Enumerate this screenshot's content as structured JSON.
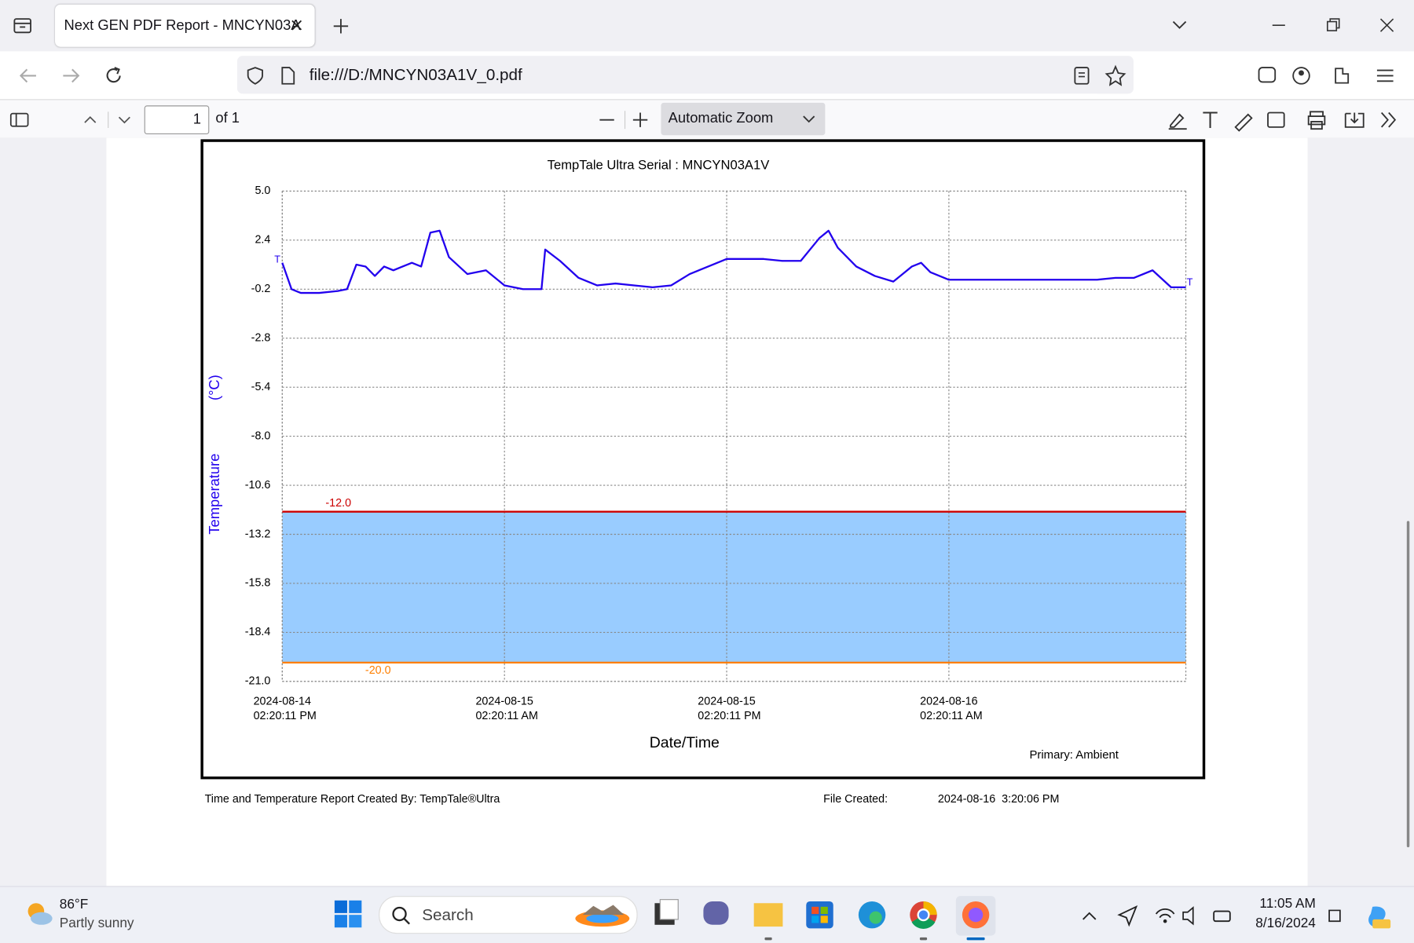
{
  "browser": {
    "tab_title": "Next GEN PDF Report - MNCYN03A",
    "url": "file:///D:/MNCYN03A1V_0.pdf",
    "page_number": "1",
    "page_count": "of 1",
    "zoom": "Automatic Zoom"
  },
  "chart_data": {
    "type": "line",
    "title": "TempTale Ultra  Serial : MNCYN03A1V",
    "ylabel": "Temperature",
    "yunit": "(°C)",
    "xlabel": "Date/Time",
    "legend": "Primary: Ambient",
    "marker_label": "T",
    "color": "#2200ee",
    "grid": true,
    "ylim": [
      -21,
      5
    ],
    "yticks": [
      {
        "value": 5,
        "label": "5.0"
      },
      2.4,
      -0.2,
      -2.8,
      -5.4,
      {
        "value": -8,
        "label": "-8.0"
      },
      -10.6,
      -13.2,
      -15.8,
      -18.4,
      {
        "value": -21,
        "label": "-21.0"
      }
    ],
    "xlim": [
      "2024-08-14T14:20:11",
      "2024-08-16T15:08:00"
    ],
    "xticks": [
      {
        "value": "2024-08-14T14:20:11",
        "label": "2024-08-14\n02:20:11 PM"
      },
      {
        "value": "2024-08-15T02:20:11",
        "label": "2024-08-15\n02:20:11 AM"
      },
      {
        "value": "2024-08-15T14:20:11",
        "label": "2024-08-15\n02:20:11 PM"
      },
      {
        "value": "2024-08-16T02:20:11",
        "label": "2024-08-16\n02:20:11 AM"
      }
    ],
    "thresholds": [
      {
        "value": -12,
        "label": "-12.0",
        "color": "#cc0000"
      },
      {
        "value": -20,
        "label": "-20.0",
        "color": "#ff7f00"
      }
    ],
    "band_color": "#99ccff",
    "x": [
      "2024-08-14T14:20:11",
      "2024-08-14T14:50:11",
      "2024-08-14T15:20:11",
      "2024-08-14T16:20:11",
      "2024-08-14T17:20:11",
      "2024-08-14T17:50:11",
      "2024-08-14T18:20:11",
      "2024-08-14T18:50:11",
      "2024-08-14T19:20:11",
      "2024-08-14T19:50:11",
      "2024-08-14T20:20:11",
      "2024-08-14T21:20:11",
      "2024-08-14T21:50:11",
      "2024-08-14T22:20:11",
      "2024-08-14T22:50:11",
      "2024-08-14T23:20:11",
      "2024-08-15T00:20:11",
      "2024-08-15T01:20:11",
      "2024-08-15T02:20:11",
      "2024-08-15T03:20:11",
      "2024-08-15T04:20:11",
      "2024-08-15T04:32:11",
      "2024-08-15T05:20:11",
      "2024-08-15T06:20:11",
      "2024-08-15T07:20:11",
      "2024-08-15T08:20:11",
      "2024-08-15T09:20:11",
      "2024-08-15T10:20:11",
      "2024-08-15T11:20:11",
      "2024-08-15T12:20:11",
      "2024-08-15T13:20:11",
      "2024-08-15T14:20:11",
      "2024-08-15T15:20:11",
      "2024-08-15T16:20:11",
      "2024-08-15T17:20:11",
      "2024-08-15T18:20:11",
      "2024-08-15T19:20:11",
      "2024-08-15T19:50:11",
      "2024-08-15T20:20:11",
      "2024-08-15T21:20:11",
      "2024-08-15T22:20:11",
      "2024-08-15T23:20:11",
      "2024-08-16T00:20:11",
      "2024-08-16T00:50:11",
      "2024-08-16T01:20:11",
      "2024-08-16T02:20:11",
      "2024-08-16T03:20:11",
      "2024-08-16T04:20:11",
      "2024-08-16T05:20:11",
      "2024-08-16T06:20:11",
      "2024-08-16T07:20:11",
      "2024-08-16T08:20:11",
      "2024-08-16T09:20:11",
      "2024-08-16T10:20:11",
      "2024-08-16T11:20:11",
      "2024-08-16T12:20:11",
      "2024-08-16T13:20:11",
      "2024-08-16T14:20:11",
      "2024-08-16T15:08:00"
    ],
    "values": [
      1.2,
      -0.2,
      -0.4,
      -0.4,
      -0.3,
      -0.2,
      1.1,
      1.0,
      0.5,
      1.0,
      0.8,
      1.2,
      1.0,
      2.8,
      2.9,
      1.5,
      0.6,
      0.8,
      0,
      -0.2,
      -0.2,
      1.9,
      1.3,
      0.4,
      0,
      0.1,
      0,
      -0.1,
      0,
      0.6,
      1.0,
      1.4,
      1.4,
      1.4,
      1.3,
      1.3,
      2.5,
      2.9,
      2.0,
      1.0,
      0.5,
      0.2,
      1.0,
      1.2,
      0.7,
      0.3,
      0.3,
      0.3,
      0.3,
      0.3,
      0.3,
      0.3,
      0.3,
      0.3,
      0.4,
      0.4,
      0.8,
      -0.1,
      -0.1
    ]
  },
  "footer": {
    "created_by": "Time and Temperature Report Created By:  TempTale®Ultra",
    "file_created_label": "File Created:",
    "file_created": "2024-08-16  3:20:06 PM"
  },
  "taskbar": {
    "temperature": "86°F",
    "weather": "Partly sunny",
    "search": "Search",
    "time": "11:05 AM",
    "date": "8/16/2024"
  }
}
